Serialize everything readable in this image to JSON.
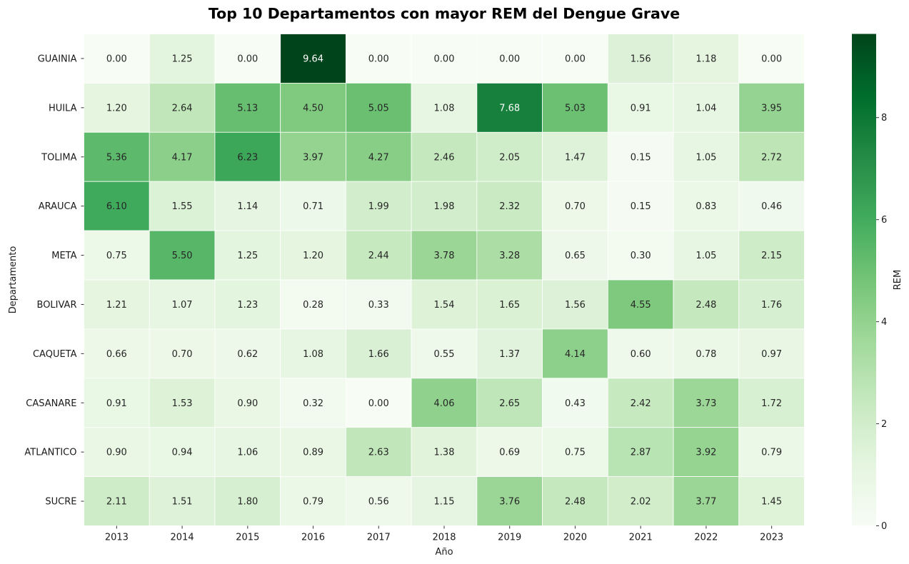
{
  "chart_data": {
    "type": "heatmap",
    "title": "Top 10 Departamentos con mayor REM del Dengue Grave",
    "xlabel": "Año",
    "ylabel": "Departamento",
    "x_categories": [
      "2013",
      "2014",
      "2015",
      "2016",
      "2017",
      "2018",
      "2019",
      "2020",
      "2021",
      "2022",
      "2023"
    ],
    "y_categories": [
      "GUAINIA",
      "HUILA",
      "TOLIMA",
      "ARAUCA",
      "META",
      "BOLIVAR",
      "CAQUETA",
      "CASANARE",
      "ATLANTICO",
      "SUCRE"
    ],
    "values": [
      [
        0.0,
        1.25,
        0.0,
        9.64,
        0.0,
        0.0,
        0.0,
        0.0,
        1.56,
        1.18,
        0.0
      ],
      [
        1.2,
        2.64,
        5.13,
        4.5,
        5.05,
        1.08,
        7.68,
        5.03,
        0.91,
        1.04,
        3.95
      ],
      [
        5.36,
        4.17,
        6.23,
        3.97,
        4.27,
        2.46,
        2.05,
        1.47,
        0.15,
        1.05,
        2.72
      ],
      [
        6.1,
        1.55,
        1.14,
        0.71,
        1.99,
        1.98,
        2.32,
        0.7,
        0.15,
        0.83,
        0.46
      ],
      [
        0.75,
        5.5,
        1.25,
        1.2,
        2.44,
        3.78,
        3.28,
        0.65,
        0.3,
        1.05,
        2.15
      ],
      [
        1.21,
        1.07,
        1.23,
        0.28,
        0.33,
        1.54,
        1.65,
        1.56,
        4.55,
        2.48,
        1.76
      ],
      [
        0.66,
        0.7,
        0.62,
        1.08,
        1.66,
        0.55,
        1.37,
        4.14,
        0.6,
        0.78,
        0.97
      ],
      [
        0.91,
        1.53,
        0.9,
        0.32,
        0.0,
        4.06,
        2.65,
        0.43,
        2.42,
        3.73,
        1.72
      ],
      [
        0.9,
        0.94,
        1.06,
        0.89,
        2.63,
        1.38,
        0.69,
        0.75,
        2.87,
        3.92,
        0.79
      ],
      [
        2.11,
        1.51,
        1.8,
        0.79,
        0.56,
        1.15,
        3.76,
        2.48,
        2.02,
        3.77,
        1.45
      ]
    ],
    "value_range": [
      0,
      9.64
    ],
    "annotations": "2 decimals",
    "colormap": "Greens",
    "colorbar": {
      "label": "REM",
      "ticks": [
        0,
        2,
        4,
        6,
        8
      ]
    },
    "grid": false
  }
}
